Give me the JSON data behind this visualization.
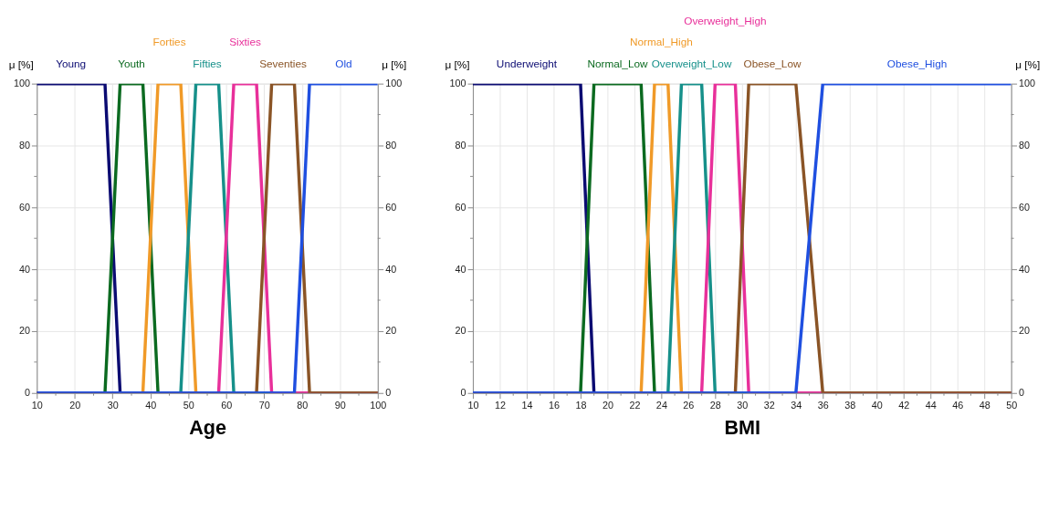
{
  "chart_data": [
    {
      "type": "line",
      "xlabel": "Age",
      "ylabel": "μ [%]",
      "y2label": "μ [%]",
      "legend": "top",
      "grid": true,
      "xlim": [
        10,
        100
      ],
      "xticks": [
        10,
        {
          "value": 15,
          "label": null
        },
        20,
        {
          "value": 25,
          "label": null
        },
        30,
        {
          "value": 35,
          "label": null
        },
        40,
        {
          "value": 45,
          "label": null
        },
        50,
        {
          "value": 55,
          "label": null
        },
        60,
        {
          "value": 65,
          "label": null
        },
        70,
        {
          "value": 75,
          "label": null
        },
        80,
        {
          "value": 85,
          "label": null
        },
        90,
        {
          "value": 95,
          "label": null
        },
        100
      ],
      "ylim": [
        0,
        100
      ],
      "yticks": [
        0,
        {
          "value": 10,
          "label": null
        },
        20,
        {
          "value": 30,
          "label": null
        },
        40,
        {
          "value": 50,
          "label": null
        },
        60,
        {
          "value": 70,
          "label": null
        },
        80,
        {
          "value": 90,
          "label": null
        },
        100
      ],
      "y2lim": [
        0,
        100
      ],
      "y2ticks": [
        0,
        {
          "value": 10,
          "label": null
        },
        20,
        {
          "value": 30,
          "label": null
        },
        40,
        {
          "value": 50,
          "label": null
        },
        60,
        {
          "value": 70,
          "label": null
        },
        80,
        {
          "value": 90,
          "label": null
        },
        100
      ],
      "series": [
        {
          "name": "Young",
          "color": "#0b0b72",
          "x": [
            10,
            28,
            32,
            100
          ],
          "values": [
            100,
            100,
            0,
            0
          ]
        },
        {
          "name": "Youth",
          "color": "#0b6a20",
          "x": [
            10,
            28,
            32,
            38,
            42,
            100
          ],
          "values": [
            0,
            0,
            100,
            100,
            0,
            0
          ]
        },
        {
          "name": "Forties",
          "color": "#f09a28",
          "x": [
            10,
            38,
            42,
            48,
            52,
            100
          ],
          "values": [
            0,
            0,
            100,
            100,
            0,
            0
          ]
        },
        {
          "name": "Fifties",
          "color": "#16908a",
          "x": [
            10,
            48,
            52,
            58,
            62,
            100
          ],
          "values": [
            0,
            0,
            100,
            100,
            0,
            0
          ]
        },
        {
          "name": "Sixties",
          "color": "#e8309a",
          "x": [
            10,
            58,
            62,
            68,
            72,
            100
          ],
          "values": [
            0,
            0,
            100,
            100,
            0,
            0
          ]
        },
        {
          "name": "Seventies",
          "color": "#8a5426",
          "x": [
            10,
            68,
            72,
            78,
            82,
            100
          ],
          "values": [
            0,
            0,
            100,
            100,
            0,
            0
          ]
        },
        {
          "name": "Old",
          "color": "#1f4fe0",
          "x": [
            10,
            78,
            82,
            100
          ],
          "values": [
            0,
            0,
            100,
            100
          ]
        }
      ]
    },
    {
      "type": "line",
      "xlabel": "BMI",
      "ylabel": "μ [%]",
      "y2label": "μ [%]",
      "legend": "top",
      "grid": true,
      "xlim": [
        10,
        50
      ],
      "xticks": [
        10,
        {
          "value": 11,
          "label": null
        },
        12,
        {
          "value": 13,
          "label": null
        },
        14,
        {
          "value": 15,
          "label": null
        },
        16,
        {
          "value": 17,
          "label": null
        },
        18,
        {
          "value": 19,
          "label": null
        },
        20,
        {
          "value": 21,
          "label": null
        },
        22,
        {
          "value": 23,
          "label": null
        },
        24,
        {
          "value": 25,
          "label": null
        },
        26,
        {
          "value": 27,
          "label": null
        },
        28,
        {
          "value": 29,
          "label": null
        },
        30,
        {
          "value": 31,
          "label": null
        },
        32,
        {
          "value": 33,
          "label": null
        },
        34,
        {
          "value": 35,
          "label": null
        },
        36,
        {
          "value": 37,
          "label": null
        },
        38,
        {
          "value": 39,
          "label": null
        },
        40,
        {
          "value": 41,
          "label": null
        },
        42,
        {
          "value": 43,
          "label": null
        },
        44,
        {
          "value": 45,
          "label": null
        },
        46,
        {
          "value": 47,
          "label": null
        },
        48,
        {
          "value": 49,
          "label": null
        },
        50
      ],
      "ylim": [
        0,
        100
      ],
      "yticks": [
        0,
        {
          "value": 10,
          "label": null
        },
        20,
        {
          "value": 30,
          "label": null
        },
        40,
        {
          "value": 50,
          "label": null
        },
        60,
        {
          "value": 70,
          "label": null
        },
        80,
        {
          "value": 90,
          "label": null
        },
        100
      ],
      "y2lim": [
        0,
        100
      ],
      "y2ticks": [
        0,
        {
          "value": 10,
          "label": null
        },
        20,
        {
          "value": 30,
          "label": null
        },
        40,
        {
          "value": 50,
          "label": null
        },
        60,
        {
          "value": 70,
          "label": null
        },
        80,
        {
          "value": 90,
          "label": null
        },
        100
      ],
      "series": [
        {
          "name": "Underweight",
          "color": "#0b0b72",
          "x": [
            10,
            18,
            19,
            50
          ],
          "values": [
            100,
            100,
            0,
            0
          ]
        },
        {
          "name": "Normal_Low",
          "color": "#0b6a20",
          "x": [
            10,
            18,
            19,
            22.5,
            23.5,
            50
          ],
          "values": [
            0,
            0,
            100,
            100,
            0,
            0
          ]
        },
        {
          "name": "Normal_High",
          "color": "#f09a28",
          "x": [
            10,
            22.5,
            23.5,
            24.5,
            25.5,
            50
          ],
          "values": [
            0,
            0,
            100,
            100,
            0,
            0
          ]
        },
        {
          "name": "Overweight_Low",
          "color": "#16908a",
          "x": [
            10,
            24.5,
            25.5,
            27,
            28,
            50
          ],
          "values": [
            0,
            0,
            100,
            100,
            0,
            0
          ]
        },
        {
          "name": "Overweight_High",
          "color": "#e8309a",
          "x": [
            10,
            27,
            28,
            29.5,
            30.5,
            50
          ],
          "values": [
            0,
            0,
            100,
            100,
            0,
            0
          ]
        },
        {
          "name": "Obese_Low",
          "color": "#8a5426",
          "x": [
            10,
            29.5,
            30.5,
            34,
            36,
            50
          ],
          "values": [
            0,
            0,
            100,
            100,
            0,
            0
          ]
        },
        {
          "name": "Obese_High",
          "color": "#1f4fe0",
          "x": [
            10,
            34,
            36,
            50
          ],
          "values": [
            0,
            0,
            100,
            100
          ]
        }
      ]
    }
  ]
}
